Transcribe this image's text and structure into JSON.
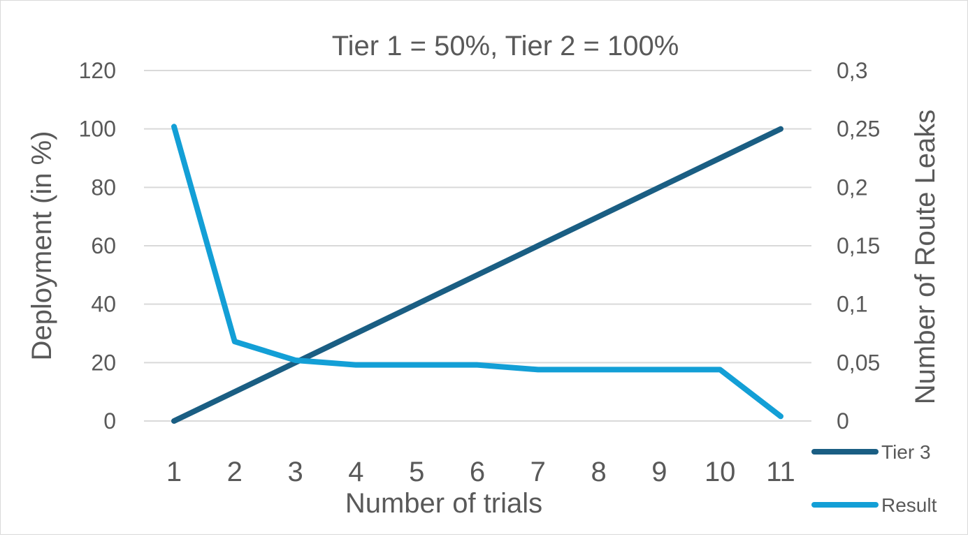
{
  "chart_data": {
    "type": "line",
    "title": "Tier 1 = 50%, Tier 2 = 100%",
    "xlabel": "Number of trials",
    "ylabel": "Deployment (in %)",
    "y2label": "Number of Route Leaks",
    "x": [
      "1",
      "2",
      "3",
      "4",
      "5",
      "6",
      "7",
      "8",
      "9",
      "10",
      "11"
    ],
    "ylim": [
      0,
      120
    ],
    "y_ticks": [
      "0",
      "20",
      "40",
      "60",
      "80",
      "100",
      "120"
    ],
    "y2lim": [
      0,
      0.3
    ],
    "y2_ticks": [
      "0",
      "0,05",
      "0,1",
      "0,15",
      "0,2",
      "0,25",
      "0,3"
    ],
    "grid": true,
    "legend_position": "bottom-right",
    "series": [
      {
        "name": "Tier 3",
        "axis": "left",
        "color": "#1a5e83",
        "values": [
          0,
          10,
          20,
          30,
          40,
          50,
          60,
          70,
          80,
          90,
          100
        ]
      },
      {
        "name": "Result",
        "axis": "right",
        "color": "#139fd6",
        "values": [
          0.252,
          0.068,
          0.052,
          0.048,
          0.048,
          0.048,
          0.044,
          0.044,
          0.044,
          0.044,
          0.004
        ]
      }
    ]
  }
}
